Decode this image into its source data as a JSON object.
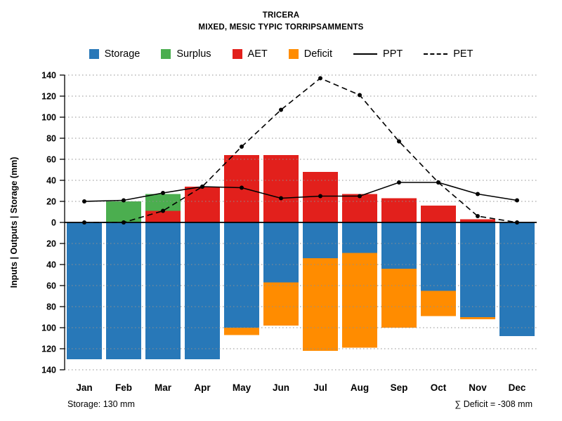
{
  "title": "TRICERA",
  "subtitle": "MIXED, MESIC TYPIC TORRIPSAMMENTS",
  "footer": {
    "storage": "Storage: 130 mm",
    "deficit": "∑ Deficit = -308 mm"
  },
  "legend": [
    {
      "label": "Storage",
      "kind": "box",
      "color": "#2878B8"
    },
    {
      "label": "Surplus",
      "kind": "box",
      "color": "#4BAE4F"
    },
    {
      "label": "AET",
      "kind": "box",
      "color": "#E2201C"
    },
    {
      "label": "Deficit",
      "kind": "box",
      "color": "#FF8C00"
    },
    {
      "label": "PPT",
      "kind": "line",
      "dashed": false
    },
    {
      "label": "PET",
      "kind": "line",
      "dashed": true
    }
  ],
  "chart_data": {
    "type": "bar",
    "title": "TRICERA",
    "subtitle": "MIXED, MESIC TYPIC TORRIPSAMMENTS",
    "categories": [
      "Jan",
      "Feb",
      "Mar",
      "Apr",
      "May",
      "Jun",
      "Jul",
      "Aug",
      "Sep",
      "Oct",
      "Nov",
      "Dec"
    ],
    "ylabel": "Inputs | Outputs | Storage    (mm)",
    "xlabel": "",
    "ylim": [
      -140,
      140
    ],
    "yticks": [
      0,
      20,
      40,
      60,
      80,
      100,
      120,
      140
    ],
    "grid": "dotted-horizontal",
    "legend_position": "top",
    "series": [
      {
        "name": "AET",
        "kind": "bar",
        "stack": "up",
        "order": 0,
        "color": "#E2201C",
        "values": [
          0,
          0,
          11,
          34,
          64,
          64,
          48,
          27,
          23,
          16,
          3,
          0
        ]
      },
      {
        "name": "Surplus",
        "kind": "bar",
        "stack": "up",
        "order": 1,
        "color": "#4BAE4F",
        "values": [
          0,
          20,
          16,
          0,
          0,
          0,
          0,
          0,
          0,
          0,
          0,
          0
        ]
      },
      {
        "name": "Storage",
        "kind": "bar",
        "stack": "down",
        "order": 0,
        "color": "#2878B8",
        "values": [
          130,
          130,
          130,
          130,
          100,
          57,
          34,
          29,
          44,
          65,
          90,
          108
        ]
      },
      {
        "name": "Deficit",
        "kind": "bar",
        "stack": "down",
        "order": 1,
        "color": "#FF8C00",
        "values": [
          0,
          0,
          0,
          0,
          7,
          41,
          88,
          90,
          56,
          24,
          2,
          0
        ]
      },
      {
        "name": "PPT",
        "kind": "line",
        "dashed": false,
        "color": "#000000",
        "values": [
          20,
          21,
          28,
          34,
          33,
          23,
          25,
          25,
          38,
          38,
          27,
          21
        ]
      },
      {
        "name": "PET",
        "kind": "line",
        "dashed": true,
        "color": "#000000",
        "values": [
          0,
          0,
          11,
          34,
          72,
          107,
          137,
          121,
          77,
          38,
          6,
          0
        ]
      }
    ],
    "annotations": {
      "storage_note": "Storage: 130 mm",
      "deficit_sum_note": "∑ Deficit = -308 mm"
    }
  }
}
